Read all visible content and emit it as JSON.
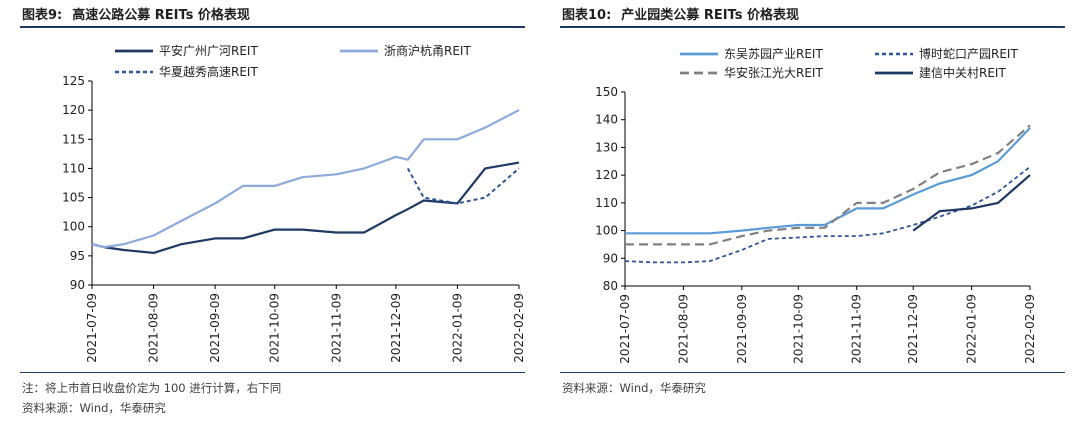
{
  "left": {
    "title_num": "图表9:",
    "title": "高速公路公募 REITs 价格表现",
    "note1": "注：将上市首日收盘价定为 100 进行计算，右下同",
    "note2": "资料来源：Wind，华泰研究"
  },
  "right": {
    "title_num": "图表10:",
    "title": "产业园类公募 REITs 价格表现",
    "note1": "资料来源：Wind，华泰研究"
  },
  "colors": {
    "navy": "#1f3864",
    "lightblue": "#8eaadb",
    "blue": "#5b9bd5",
    "dashnavy": "#2f5597",
    "gray": "#808080"
  },
  "chart_data": [
    {
      "type": "line",
      "title": "高速公路公募 REITs 价格表现",
      "x": [
        "2021-07-09",
        "2021-07-15",
        "2021-07-25",
        "2021-08-09",
        "2021-08-23",
        "2021-09-09",
        "2021-09-23",
        "2021-10-09",
        "2021-10-23",
        "2021-11-09",
        "2021-11-23",
        "2021-12-09",
        "2021-12-15",
        "2021-12-23",
        "2022-01-09",
        "2022-01-23",
        "2022-02-09"
      ],
      "xticks": [
        "2021-07-09",
        "2021-08-09",
        "2021-09-09",
        "2021-10-09",
        "2021-11-09",
        "2021-12-09",
        "2022-01-09",
        "2022-02-09"
      ],
      "ylim": [
        90,
        125
      ],
      "yticks": [
        90,
        95,
        100,
        105,
        110,
        115,
        120,
        125
      ],
      "series": [
        {
          "name": "平安广州广河REIT",
          "style": "solid-dark",
          "values": [
            97,
            96.5,
            96,
            95.5,
            97,
            98,
            98,
            99.5,
            99.5,
            99,
            99,
            102,
            103,
            104.5,
            104,
            110,
            111
          ]
        },
        {
          "name": "浙商沪杭甬REIT",
          "style": "solid-light",
          "values": [
            97,
            96.5,
            97,
            98.5,
            101,
            104,
            107,
            107,
            108.5,
            109,
            110,
            112,
            111.5,
            115,
            115,
            117,
            120
          ]
        },
        {
          "name": "华夏越秀高速REIT",
          "style": "dashed",
          "values": [
            null,
            null,
            null,
            null,
            null,
            null,
            null,
            null,
            null,
            null,
            null,
            null,
            110,
            105,
            104,
            105,
            110
          ]
        }
      ]
    },
    {
      "type": "line",
      "title": "产业园类公募 REITs 价格表现",
      "x": [
        "2021-07-09",
        "2021-07-25",
        "2021-08-09",
        "2021-08-23",
        "2021-09-09",
        "2021-09-23",
        "2021-10-09",
        "2021-10-23",
        "2021-11-09",
        "2021-11-23",
        "2021-12-09",
        "2021-12-23",
        "2022-01-09",
        "2022-01-23",
        "2022-02-09"
      ],
      "xticks": [
        "2021-07-09",
        "2021-08-09",
        "2021-09-09",
        "2021-10-09",
        "2021-11-09",
        "2021-12-09",
        "2022-01-09",
        "2022-02-09"
      ],
      "ylim": [
        80,
        150
      ],
      "yticks": [
        80,
        90,
        100,
        110,
        120,
        130,
        140,
        150
      ],
      "series": [
        {
          "name": "东吴苏园产业REIT",
          "style": "solid-blue",
          "values": [
            99,
            99,
            99,
            99,
            100,
            101,
            102,
            102,
            108,
            108,
            113,
            117,
            120,
            125,
            137
          ]
        },
        {
          "name": "博时蛇口产园REIT",
          "style": "dashed-navy",
          "values": [
            89,
            88.5,
            88.5,
            89,
            93,
            97,
            97.5,
            98,
            98,
            99,
            102,
            105,
            109,
            114,
            123
          ]
        },
        {
          "name": "华安张江光大REIT",
          "style": "dashed-gray",
          "values": [
            95,
            95,
            95,
            95,
            98,
            100,
            101,
            101,
            110,
            110,
            115,
            121,
            124,
            128,
            138
          ]
        },
        {
          "name": "建信中关村REIT",
          "style": "solid-navy",
          "values": [
            null,
            null,
            null,
            null,
            null,
            null,
            null,
            null,
            null,
            null,
            100,
            107,
            108,
            110,
            120
          ]
        }
      ]
    }
  ]
}
